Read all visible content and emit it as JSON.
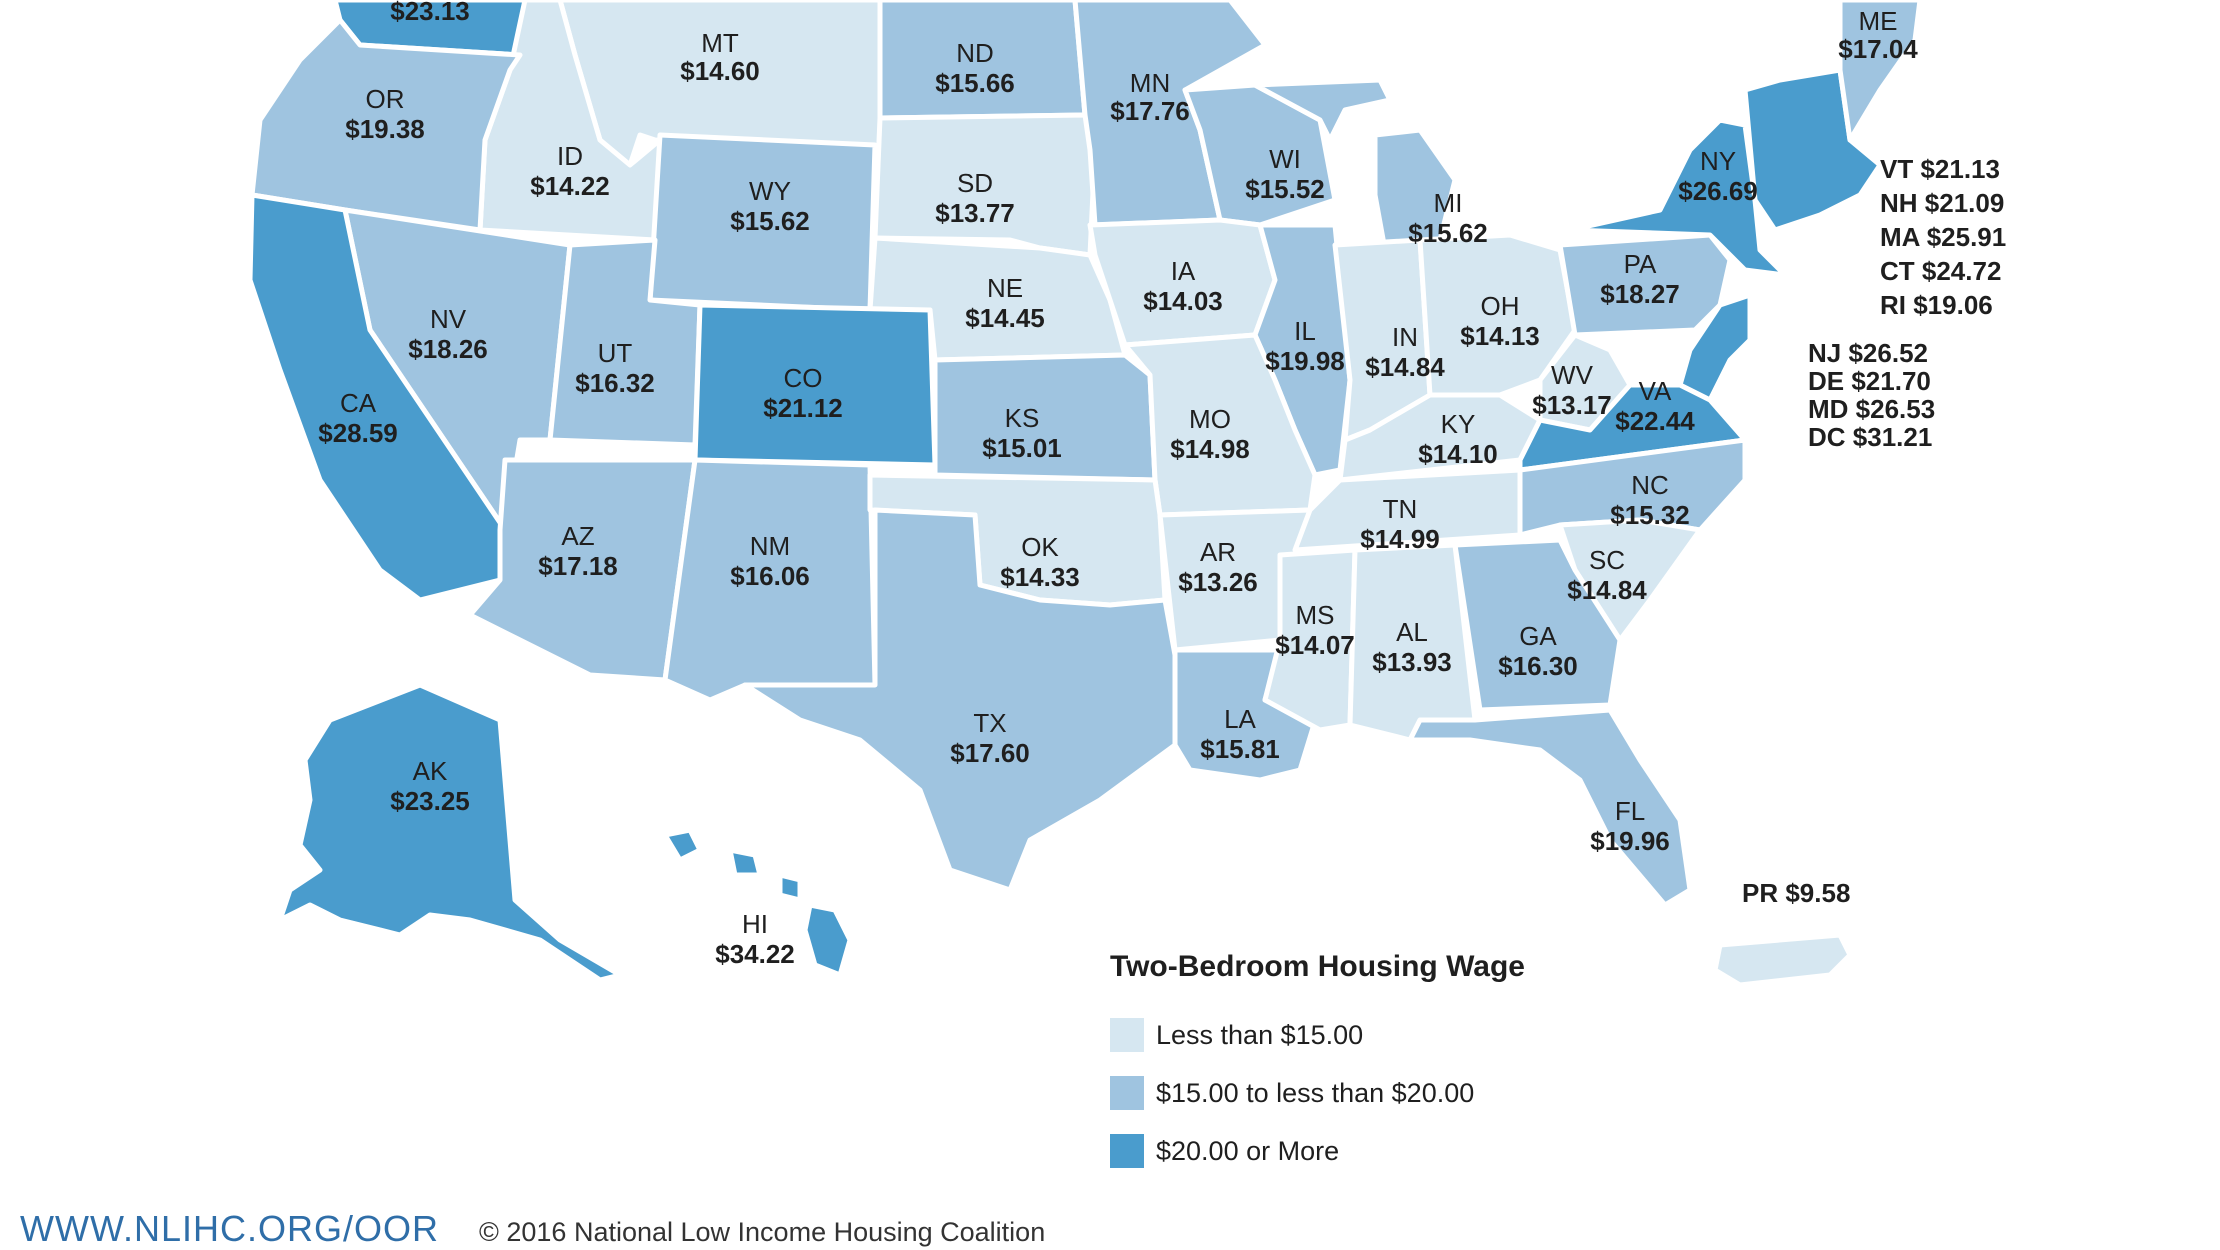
{
  "colors": {
    "low": "#d6e7f1",
    "mid": "#9fc4e0",
    "high": "#4a9ccd"
  },
  "states": {
    "WA": {
      "value": "$23.13"
    },
    "MT": {
      "abbr": "MT",
      "value": "$14.60"
    },
    "ND": {
      "abbr": "ND",
      "value": "$15.66"
    },
    "MN": {
      "abbr": "MN",
      "value": "$17.76"
    },
    "ME": {
      "abbr": "ME",
      "value": "$17.04"
    },
    "OR": {
      "abbr": "OR",
      "value": "$19.38"
    },
    "ID": {
      "abbr": "ID",
      "value": "$14.22"
    },
    "WY": {
      "abbr": "WY",
      "value": "$15.62"
    },
    "SD": {
      "abbr": "SD",
      "value": "$13.77"
    },
    "WI": {
      "abbr": "WI",
      "value": "$15.52"
    },
    "MI": {
      "abbr": "MI",
      "value": "$15.62"
    },
    "NY": {
      "abbr": "NY",
      "value": "$26.69"
    },
    "CA": {
      "abbr": "CA",
      "value": "$28.59"
    },
    "NV": {
      "abbr": "NV",
      "value": "$18.26"
    },
    "UT": {
      "abbr": "UT",
      "value": "$16.32"
    },
    "CO": {
      "abbr": "CO",
      "value": "$21.12"
    },
    "NE": {
      "abbr": "NE",
      "value": "$14.45"
    },
    "IA": {
      "abbr": "IA",
      "value": "$14.03"
    },
    "IL": {
      "abbr": "IL",
      "value": "$19.98"
    },
    "IN": {
      "abbr": "IN",
      "value": "$14.84"
    },
    "OH": {
      "abbr": "OH",
      "value": "$14.13"
    },
    "PA": {
      "abbr": "PA",
      "value": "$18.27"
    },
    "KS": {
      "abbr": "KS",
      "value": "$15.01"
    },
    "MO": {
      "abbr": "MO",
      "value": "$14.98"
    },
    "KY": {
      "abbr": "KY",
      "value": "$14.10"
    },
    "WV": {
      "abbr": "WV",
      "value": "$13.17"
    },
    "VA": {
      "abbr": "VA",
      "value": "$22.44"
    },
    "AZ": {
      "abbr": "AZ",
      "value": "$17.18"
    },
    "NM": {
      "abbr": "NM",
      "value": "$16.06"
    },
    "OK": {
      "abbr": "OK",
      "value": "$14.33"
    },
    "AR": {
      "abbr": "AR",
      "value": "$13.26"
    },
    "TN": {
      "abbr": "TN",
      "value": "$14.99"
    },
    "NC": {
      "abbr": "NC",
      "value": "$15.32"
    },
    "SC": {
      "abbr": "SC",
      "value": "$14.84"
    },
    "MS": {
      "abbr": "MS",
      "value": "$14.07"
    },
    "AL": {
      "abbr": "AL",
      "value": "$13.93"
    },
    "GA": {
      "abbr": "GA",
      "value": "$16.30"
    },
    "TX": {
      "abbr": "TX",
      "value": "$17.60"
    },
    "LA": {
      "abbr": "LA",
      "value": "$15.81"
    },
    "FL": {
      "abbr": "FL",
      "value": "$19.96"
    },
    "AK": {
      "abbr": "AK",
      "value": "$23.25"
    },
    "HI": {
      "abbr": "HI",
      "value": "$34.22"
    }
  },
  "side_labels": [
    "VT $21.13",
    "NH $21.09",
    "MA $25.91",
    "CT $24.72",
    "RI $19.06",
    "NJ $26.52",
    "DE $21.70",
    "MD $26.53",
    "DC $31.21"
  ],
  "pr_label": "PR $9.58",
  "legend": {
    "title": "Two-Bedroom Housing Wage",
    "items": [
      "Less than $15.00",
      "$15.00 to less than $20.00",
      "$20.00 or More"
    ]
  },
  "footer": {
    "url": "WWW.NLIHC.ORG/OOR",
    "copyright": "© 2016 National Low Income Housing Coalition"
  }
}
